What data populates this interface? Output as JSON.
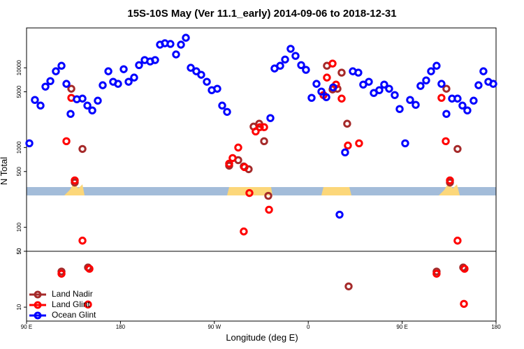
{
  "chart_data": [
    {
      "type": "scatter",
      "title": "15S-10S May (Ver 11.1_early)   2014-09-06 to 2018-12-31",
      "ylabel": "N Total",
      "log_y": true,
      "xlim": [
        90,
        540
      ],
      "ylim": [
        50,
        31623
      ],
      "yticks": [
        100,
        500,
        1000,
        5000,
        10000,
        50
      ],
      "series": [
        {
          "name": "Land Nadir",
          "color": "#a52a2a",
          "x": [
            132.9,
            143.6,
            136.2,
            284.2,
            292.9,
            298.2,
            302.9,
            307.6,
            313.0,
            317.7,
            321.7,
            377.9,
            383.3,
            388.0,
            392.0,
            397.3,
            492.4,
            503.1,
            495.8
          ],
          "values": [
            5460,
            960,
            364,
            592,
            695,
            580,
            535,
            1830,
            1990,
            1200,
            248,
            10600,
            5350,
            5460,
            8690,
            1990,
            5460,
            960,
            364
          ]
        },
        {
          "name": "Land Glint",
          "color": "#ff0000",
          "x": [
            128.2,
            132.9,
            136.2,
            143.6,
            284.2,
            287.5,
            292.9,
            298.2,
            298.9,
            303.6,
            309.6,
            313.6,
            317.7,
            322.4,
            374.6,
            377.9,
            383.3,
            386.6,
            392.0,
            398.0,
            408.7,
            491.8,
            487.7,
            495.8,
            503.1
          ],
          "values": [
            1200,
            4200,
            387,
            68,
            628,
            738,
            1000,
            88.6,
            568,
            269,
            1590,
            1800,
            1800,
            166,
            4550,
            7540,
            11300,
            6160,
            4110,
            1060,
            1130,
            1200,
            4200,
            387,
            68
          ]
        },
        {
          "name": "Ocean Glint",
          "color": "#0000ff",
          "x": [
            92.7,
            98.0,
            103.4,
            108.1,
            112.8,
            118.1,
            123.5,
            128.2,
            132.2,
            138.2,
            143.6,
            148.3,
            153.0,
            158.3,
            163.0,
            168.4,
            173.0,
            177.7,
            183.1,
            187.8,
            193.1,
            197.8,
            203.2,
            208.5,
            213.2,
            217.9,
            222.6,
            227.9,
            233.3,
            238.0,
            242.7,
            247.4,
            252.7,
            257.4,
            262.8,
            267.5,
            272.8,
            277.5,
            282.2,
            323.7,
            327.7,
            333.1,
            337.8,
            343.1,
            347.8,
            353.2,
            357.8,
            363.2,
            367.9,
            372.6,
            377.3,
            383.9,
            390.0,
            395.3,
            402.7,
            408.0,
            412.7,
            418.1,
            422.8,
            428.1,
            432.8,
            437.5,
            442.9,
            447.6,
            452.9,
            457.6,
            463.0,
            467.6,
            473.0,
            477.7,
            483.0,
            487.7,
            492.4,
            497.8,
            503.1,
            507.8,
            512.5,
            518.5,
            523.2,
            527.9,
            532.6,
            537.3
          ],
          "values": [
            1130,
            3950,
            3360,
            5800,
            6810,
            9040,
            10600,
            6290,
            2640,
            4030,
            4110,
            3360,
            2920,
            3870,
            6040,
            9040,
            6680,
            6290,
            9600,
            6680,
            7540,
            10800,
            12500,
            12000,
            12500,
            19500,
            20300,
            19900,
            14700,
            19500,
            23800,
            10000,
            9040,
            8170,
            6680,
            5240,
            5460,
            3360,
            2800,
            2340,
            9800,
            10600,
            12700,
            17300,
            14100,
            10800,
            9420,
            4200,
            6290,
            5030,
            4280,
            5680,
            144,
            869,
            9040,
            8690,
            6160,
            6680,
            4830,
            5240,
            6160,
            5460,
            4550,
            3040,
            1130,
            3950,
            3430,
            5920,
            6950,
            9040,
            10600,
            6290,
            2640,
            4110,
            4110,
            3360,
            2920,
            3870,
            6040,
            9040,
            6680,
            6290
          ]
        }
      ]
    },
    {
      "type": "scatter",
      "xlabel": "Longitude (deg E)",
      "log_y": true,
      "xlim": [
        90,
        540
      ],
      "ylim": [
        6.7,
        50
      ],
      "xticks": [
        {
          "value": 90,
          "label": "90 E"
        },
        180,
        {
          "value": 270,
          "label": "90 W"
        },
        {
          "value": 360,
          "label": "0"
        },
        {
          "value": 450,
          "label": "90 E"
        },
        {
          "value": 540,
          "label": "180"
        }
      ],
      "yticks": [
        50,
        10
      ],
      "legend": "bottom-left",
      "series": [
        {
          "name": "Land Nadir",
          "color": "#a52a2a",
          "x": [
            123.5,
            148.9,
            398.7,
            483.0,
            508.5
          ],
          "values": [
            27.9,
            31.4,
            18.2,
            27.9,
            31.4
          ]
        },
        {
          "name": "Land Glint",
          "color": "#ff0000",
          "x": [
            123.5,
            150.3,
            148.9,
            483.0,
            509.8,
            509.2
          ],
          "values": [
            26.2,
            30.2,
            10.8,
            26.2,
            30.2,
            11.0
          ]
        },
        {
          "name": "Ocean Glint",
          "color": "#0000ff",
          "x": [],
          "values": []
        }
      ]
    }
  ]
}
